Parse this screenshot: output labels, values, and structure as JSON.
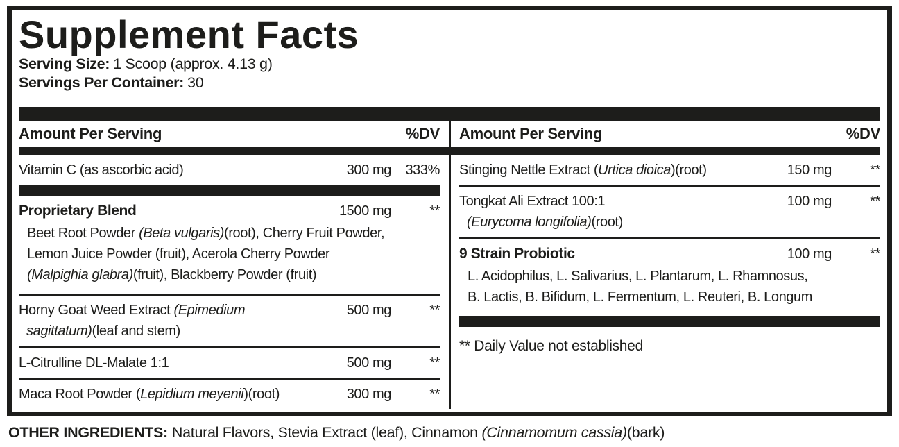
{
  "label": {
    "title": "Supplement Facts",
    "serving_size": {
      "label": "Serving Size:",
      "value": "1 Scoop (approx. 4.13 g)"
    },
    "servings_per_container": {
      "label": "Servings Per Container:",
      "value": "30"
    },
    "column_header": {
      "amount": "Amount Per Serving",
      "dv": "%DV"
    },
    "columns": {
      "left": [
        {
          "name_parts": [
            {
              "t": "Vitamin C (as ascorbic acid)"
            }
          ],
          "amount": "300 mg",
          "dv": "333%",
          "sep_after": "thick"
        },
        {
          "bold": true,
          "name_parts": [
            {
              "t": "Proprietary Blend"
            }
          ],
          "amount": "1500 mg",
          "dv": "**",
          "sub_parts": [
            {
              "t": "Beet Root Powder "
            },
            {
              "t": "(Beta vulgaris)",
              "i": true
            },
            {
              "t": "(root), Cherry Fruit Powder,"
            },
            {
              "br": true
            },
            {
              "t": "Lemon Juice Powder (fruit), Acerola Cherry Powder"
            },
            {
              "br": true
            },
            {
              "t": "(Malpighia glabra)",
              "i": true
            },
            {
              "t": "(fruit), Blackberry Powder (fruit)"
            }
          ],
          "sep_after": "thin"
        },
        {
          "hang": true,
          "name_parts": [
            {
              "t": "Horny Goat Weed Extract "
            },
            {
              "t": "(Epimedium",
              "i": true
            },
            {
              "br": true
            },
            {
              "t": "sagittatum)",
              "i": true
            },
            {
              "t": "(leaf and stem)"
            }
          ],
          "amount": "500 mg",
          "dv": "**",
          "sep_after": "thin"
        },
        {
          "name_parts": [
            {
              "t": "L-Citrulline DL-Malate 1:1"
            }
          ],
          "amount": "500 mg",
          "dv": "**",
          "sep_after": "thin"
        },
        {
          "name_parts": [
            {
              "t": "Maca Root Powder ("
            },
            {
              "t": "Lepidium meyenii",
              "i": true
            },
            {
              "t": ")(root)"
            }
          ],
          "amount": "300 mg",
          "dv": "**",
          "sep_after": "none"
        }
      ],
      "right": [
        {
          "name_parts": [
            {
              "t": "Stinging Nettle Extract ("
            },
            {
              "t": "Urtica dioica",
              "i": true
            },
            {
              "t": ")(root)"
            }
          ],
          "amount": "150 mg",
          "dv": "**",
          "sep_after": "thin"
        },
        {
          "hang": true,
          "name_parts": [
            {
              "t": "Tongkat Ali Extract 100:1"
            },
            {
              "br": true
            },
            {
              "t": "(Eurycoma longifolia)",
              "i": true
            },
            {
              "t": "(root)"
            }
          ],
          "amount": "100 mg",
          "dv": "**",
          "sep_after": "thin"
        },
        {
          "bold": true,
          "name_parts": [
            {
              "t": "9 Strain Probiotic"
            }
          ],
          "amount": "100 mg",
          "dv": "**",
          "sub_parts": [
            {
              "t": "L. Acidophilus, L. Salivarius, L. Plantarum, L. Rhamnosus,"
            },
            {
              "br": true
            },
            {
              "t": "B. Lactis, B. Bifidum, L. Fermentum, L. Reuteri, B. Longum"
            }
          ],
          "sep_after": "thick"
        }
      ]
    },
    "footnote": "** Daily Value not established",
    "other_ingredients": {
      "label": "OTHER INGREDIENTS:",
      "parts": [
        {
          "t": "Natural Flavors, Stevia Extract (leaf), Cinnamon "
        },
        {
          "t": "(Cinnamomum cassia)",
          "i": true
        },
        {
          "t": "(bark)"
        }
      ]
    },
    "colors": {
      "ink": "#1d1d1b",
      "background": "#ffffff"
    }
  }
}
